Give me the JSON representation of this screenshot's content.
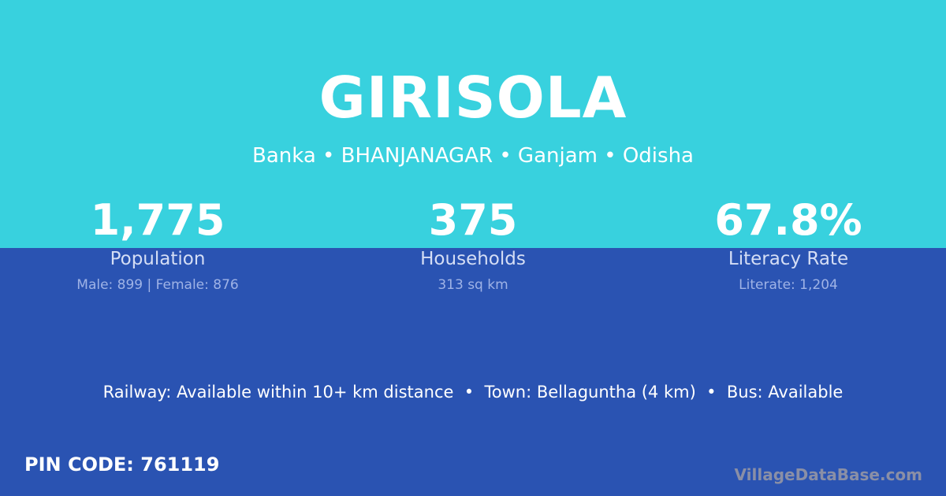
{
  "village": "GIRISOLA",
  "location": "Banka • BHANJANAGAR • Ganjam • Odisha",
  "stats": [
    {
      "value": "1,775",
      "label": "Population",
      "detail": "Male: 899 | Female: 876"
    },
    {
      "value": "375",
      "label": "Households",
      "detail": "313 sq km"
    },
    {
      "value": "67.8%",
      "label": "Literacy Rate",
      "detail": "Literate: 1,204"
    }
  ],
  "facts": "Railway: Available within 10+ km distance  •  Town: Bellaguntha (4 km)  •  Bus: Available",
  "pin": "PIN CODE: 761119",
  "brand": "VillageDataBase.com",
  "colors": {
    "top": "#38d1de",
    "bottom": "#2a53b2"
  }
}
